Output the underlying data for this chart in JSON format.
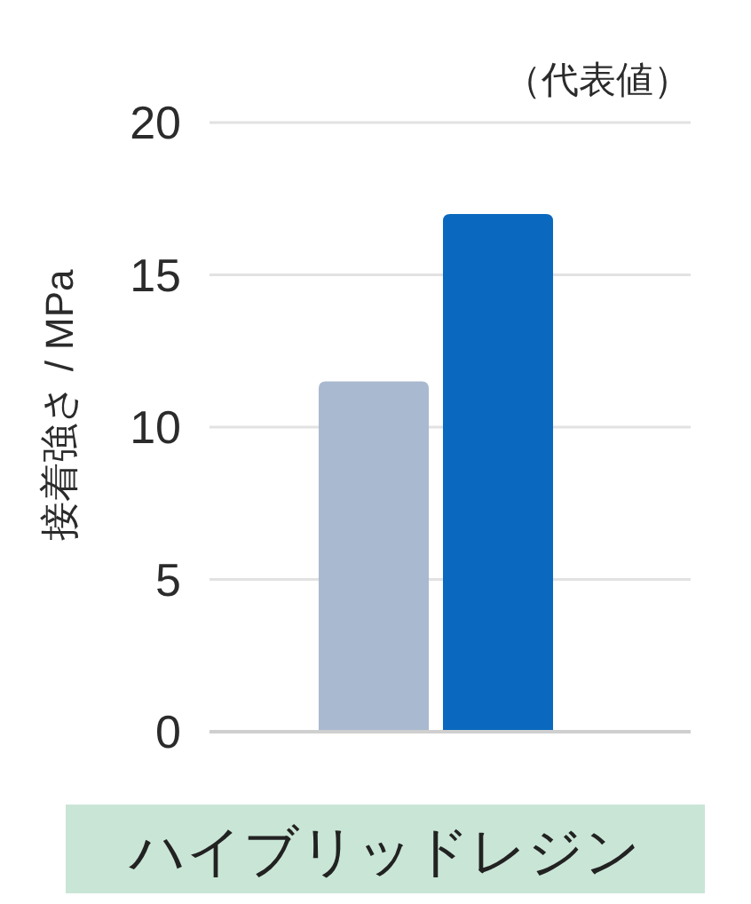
{
  "chart_data": {
    "type": "bar",
    "ylabel": "接着強さ / MPa",
    "annotations": [
      "（代表値）"
    ],
    "categories": [
      "ハイブリッドレジン"
    ],
    "series": [
      {
        "color": "#a9b9cf",
        "values": [
          11.5
        ]
      },
      {
        "color": "#0a69be",
        "values": [
          17
        ]
      }
    ],
    "ylim": [
      0,
      20
    ],
    "yticks": [
      0,
      5,
      10,
      15,
      20
    ],
    "grid": "y"
  }
}
